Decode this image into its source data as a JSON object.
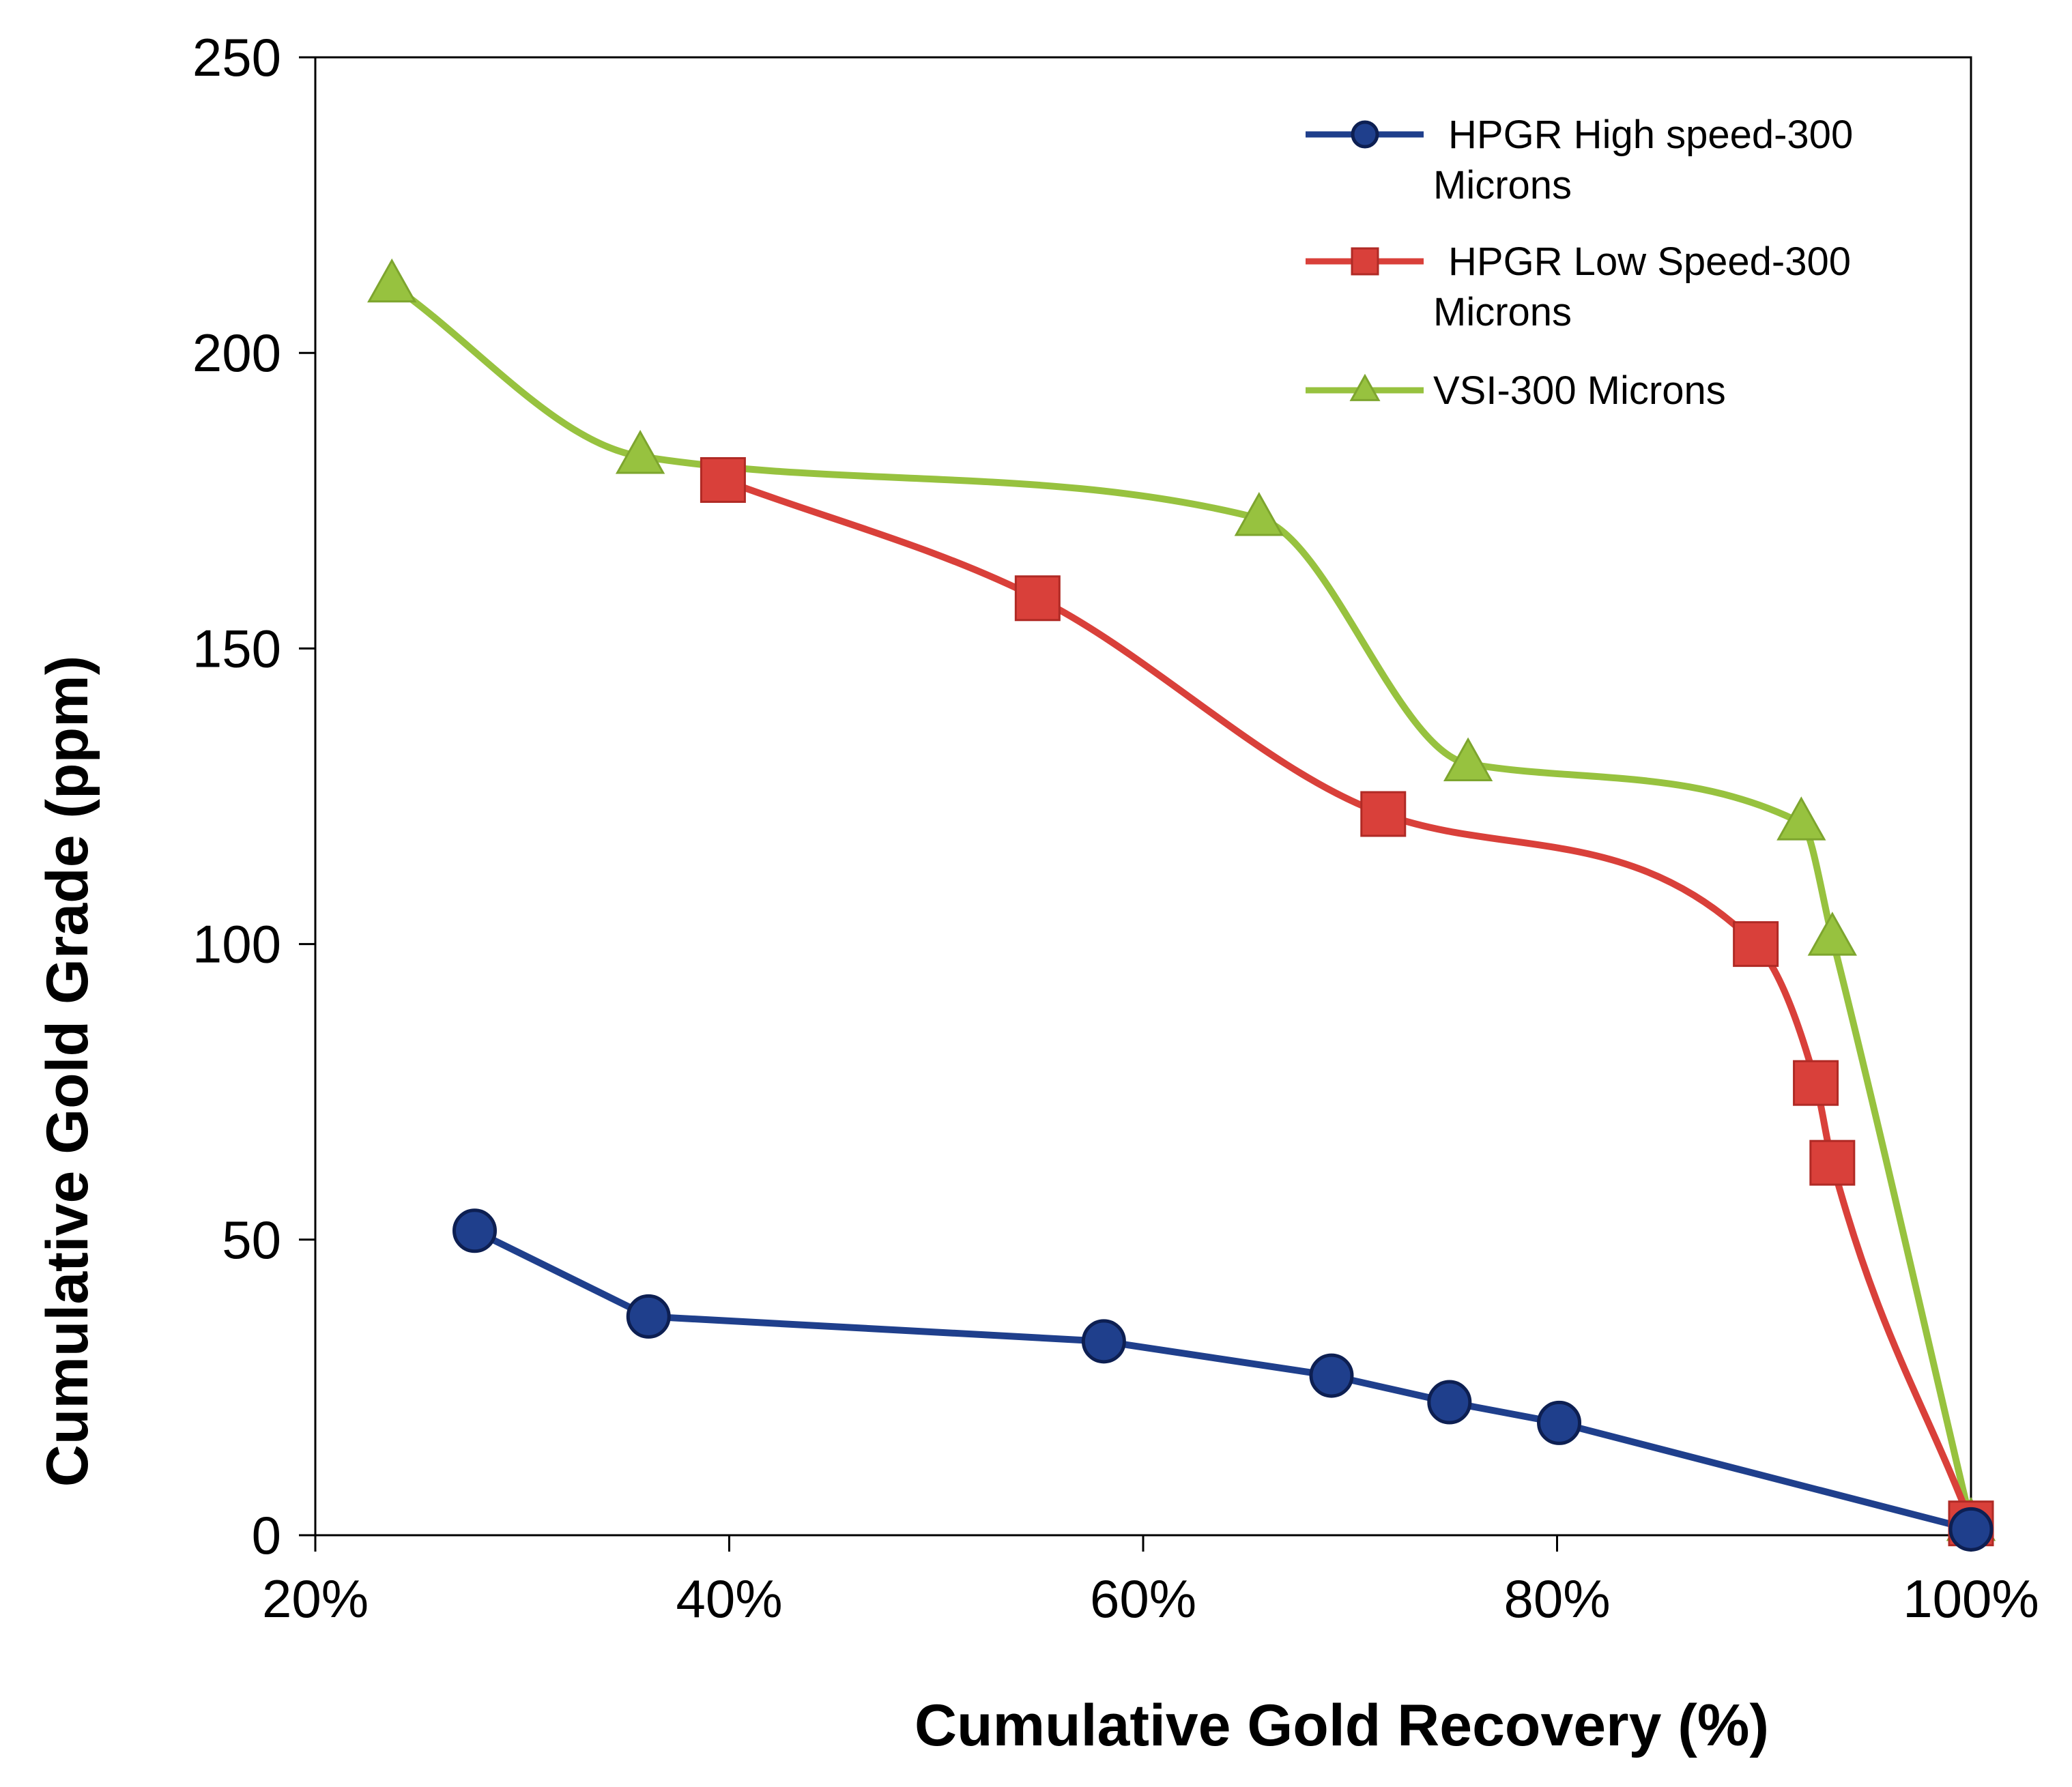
{
  "chart_data": {
    "type": "line",
    "title": "",
    "xlabel": "Cumulative Gold Recovery (%)",
    "ylabel": "Cumulative Gold Grade (ppm)",
    "xlim": [
      20,
      100
    ],
    "ylim": [
      0,
      250
    ],
    "x_ticks": [
      {
        "value": 20,
        "label": "20%"
      },
      {
        "value": 40,
        "label": "40%"
      },
      {
        "value": 60,
        "label": "60%"
      },
      {
        "value": 80,
        "label": "80%"
      },
      {
        "value": 100,
        "label": "100%"
      }
    ],
    "y_ticks": [
      {
        "value": 0,
        "label": "0"
      },
      {
        "value": 50,
        "label": "50"
      },
      {
        "value": 100,
        "label": "100"
      },
      {
        "value": 150,
        "label": "150"
      },
      {
        "value": 200,
        "label": "200"
      },
      {
        "value": 250,
        "label": "250"
      }
    ],
    "grid": false,
    "legend_position": "top-right",
    "series": [
      {
        "name": "HPGR High speed-300 Microns",
        "legend_lines": [
          "HPGR High speed-300",
          "Microns"
        ],
        "color": "#1f3f8c",
        "marker": "circle",
        "smooth": false,
        "points": [
          [
            27.7,
            51.5
          ],
          [
            36.1,
            37.0
          ],
          [
            58.1,
            32.8
          ],
          [
            69.1,
            27.0
          ],
          [
            74.8,
            22.5
          ],
          [
            80.1,
            19.0
          ],
          [
            100.0,
            1.0
          ]
        ]
      },
      {
        "name": "HPGR Low Speed-300 Microns",
        "legend_lines": [
          "HPGR Low Speed-300",
          "Microns"
        ],
        "color": "#d9403a",
        "marker": "square",
        "smooth": true,
        "points": [
          [
            39.7,
            178.5
          ],
          [
            54.9,
            158.5
          ],
          [
            71.6,
            122.0
          ],
          [
            89.6,
            100.0
          ],
          [
            92.5,
            76.5
          ],
          [
            93.3,
            63.0
          ],
          [
            100.0,
            2.0
          ]
        ]
      },
      {
        "name": "VSI-300 Microns",
        "legend_lines": [
          "VSI-300 Microns"
        ],
        "color": "#97c23f",
        "marker": "triangle",
        "smooth": true,
        "points": [
          [
            23.7,
            211.5
          ],
          [
            35.7,
            182.5
          ],
          [
            65.6,
            172.0
          ],
          [
            75.7,
            130.5
          ],
          [
            91.8,
            120.5
          ],
          [
            93.3,
            101.0
          ],
          [
            100.0,
            2.0
          ]
        ]
      }
    ]
  }
}
